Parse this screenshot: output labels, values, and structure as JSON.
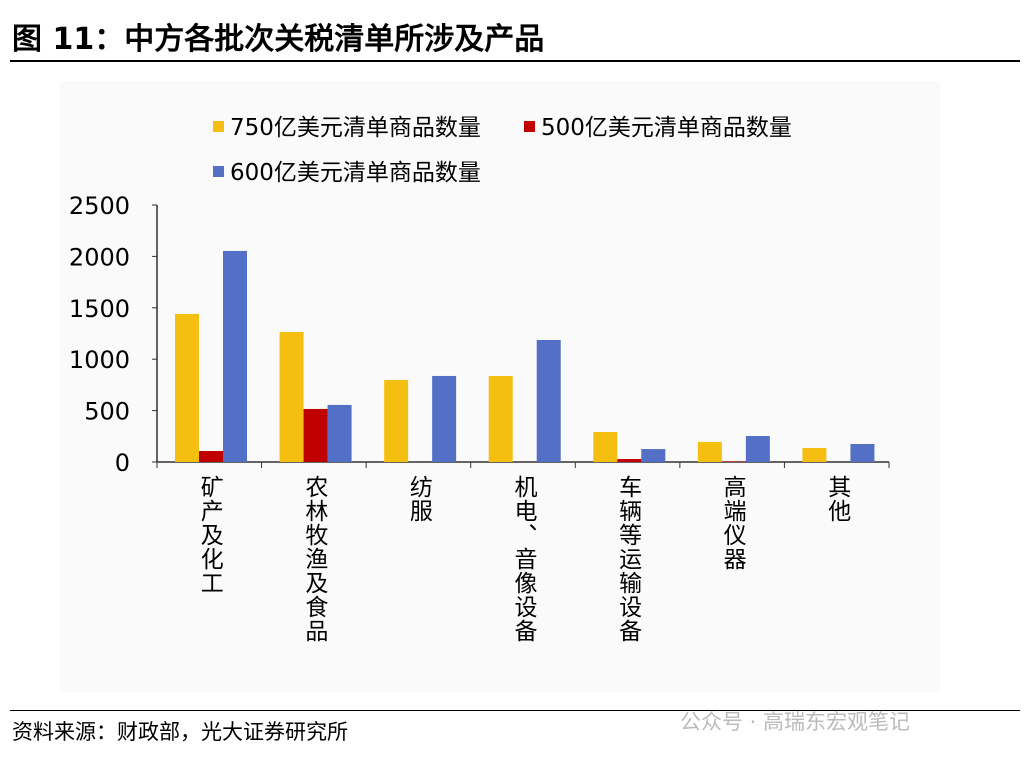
{
  "title": "图 11：中方各批次关税清单所涉及产品",
  "source": "资料来源：财政部，光大证券研究所",
  "watermark": "公众号 · 高瑞东宏观笔记",
  "chart_data": {
    "type": "bar",
    "categories": [
      "矿产及化工",
      "农林牧渔及食品",
      "纺服",
      "机电、音像设备",
      "车辆等运输设备",
      "高端仪器",
      "其他"
    ],
    "series": [
      {
        "name": "750亿美元清单商品数量",
        "color": "#f5bf12",
        "values": [
          1440,
          1265,
          798,
          837,
          292,
          195,
          136
        ]
      },
      {
        "name": "500亿美元清单商品数量",
        "color": "#c00000",
        "values": [
          107,
          516,
          0,
          0,
          29,
          5,
          0
        ]
      },
      {
        "name": "600亿美元清单商品数量",
        "color": "#5470c6",
        "values": [
          2053,
          555,
          837,
          1187,
          126,
          253,
          175
        ]
      }
    ],
    "ylim": [
      0,
      2500
    ],
    "yticks": [
      "0",
      "500",
      "1000",
      "1500",
      "2000",
      "2500"
    ],
    "grid": false,
    "legend": "top"
  }
}
